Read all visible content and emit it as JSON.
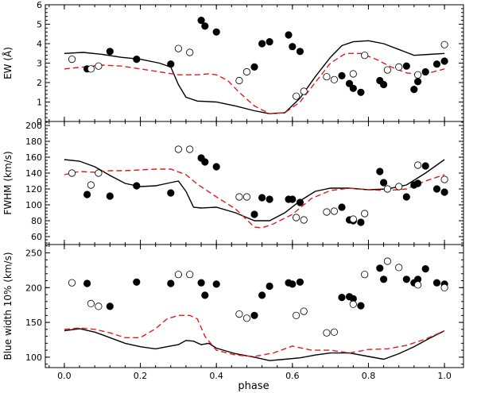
{
  "figure": {
    "xlabel": "phase"
  },
  "chart_data": [
    {
      "type": "line+scatter",
      "panel": "top",
      "ylabel": "EW (Å)",
      "xlim": [
        -0.05,
        1.05
      ],
      "ylim": [
        0,
        6
      ],
      "yticks": [
        0,
        1,
        2,
        3,
        4,
        5,
        6
      ],
      "xticks": [
        0.0,
        0.2,
        0.4,
        0.6,
        0.8,
        1.0
      ],
      "xtick_labels": [
        "0.0",
        "0.2",
        "0.4",
        "0.6",
        "0.8",
        "1.0"
      ],
      "show_xtick_labels": false,
      "series": [
        {
          "name": "model-solid-black",
          "style": "solid-black",
          "x": [
            0.0,
            0.05,
            0.1,
            0.15,
            0.2,
            0.25,
            0.28,
            0.3,
            0.32,
            0.35,
            0.4,
            0.45,
            0.5,
            0.54,
            0.58,
            0.62,
            0.66,
            0.7,
            0.73,
            0.76,
            0.8,
            0.84,
            0.88,
            0.92,
            0.96,
            1.0
          ],
          "y": [
            3.5,
            3.55,
            3.45,
            3.3,
            3.2,
            3.0,
            2.8,
            1.9,
            1.25,
            1.05,
            1.0,
            0.8,
            0.55,
            0.4,
            0.45,
            1.2,
            2.3,
            3.3,
            3.9,
            4.1,
            4.15,
            4.0,
            3.7,
            3.4,
            3.45,
            3.5
          ]
        },
        {
          "name": "model-dashed-red",
          "style": "dashed-red",
          "x": [
            0.0,
            0.05,
            0.1,
            0.15,
            0.2,
            0.25,
            0.3,
            0.35,
            0.38,
            0.4,
            0.43,
            0.46,
            0.5,
            0.54,
            0.58,
            0.62,
            0.66,
            0.7,
            0.74,
            0.78,
            0.82,
            0.86,
            0.9,
            0.94,
            0.98,
            1.0
          ],
          "y": [
            2.7,
            2.8,
            2.9,
            2.85,
            2.7,
            2.55,
            2.4,
            2.4,
            2.45,
            2.4,
            2.1,
            1.5,
            0.8,
            0.4,
            0.45,
            1.0,
            2.0,
            3.0,
            3.5,
            3.5,
            3.2,
            2.8,
            2.5,
            2.4,
            2.6,
            2.7
          ]
        },
        {
          "name": "observed-filled",
          "style": "filled",
          "x": [
            0.06,
            0.12,
            0.19,
            0.28,
            0.36,
            0.37,
            0.4,
            0.5,
            0.52,
            0.54,
            0.59,
            0.6,
            0.62,
            0.73,
            0.75,
            0.76,
            0.78,
            0.83,
            0.84,
            0.9,
            0.92,
            0.93,
            0.95,
            0.98,
            1.0
          ],
          "y": [
            2.7,
            3.6,
            3.2,
            2.95,
            5.2,
            4.9,
            4.6,
            2.8,
            4.0,
            4.1,
            4.45,
            3.85,
            3.6,
            2.35,
            1.95,
            1.7,
            1.5,
            2.1,
            1.9,
            2.85,
            1.65,
            2.05,
            2.55,
            2.95,
            3.1
          ]
        },
        {
          "name": "observed-open",
          "style": "open",
          "x": [
            0.02,
            0.07,
            0.09,
            0.3,
            0.33,
            0.46,
            0.48,
            0.61,
            0.63,
            0.69,
            0.71,
            0.76,
            0.79,
            0.85,
            0.88,
            0.93,
            1.0
          ],
          "y": [
            3.2,
            2.7,
            2.85,
            3.75,
            3.55,
            2.1,
            2.55,
            1.3,
            1.55,
            2.3,
            2.15,
            2.45,
            3.4,
            2.65,
            2.8,
            2.4,
            3.95
          ]
        }
      ]
    },
    {
      "type": "line+scatter",
      "panel": "middle",
      "ylabel": "FWHM (km/s)",
      "xlim": [
        -0.05,
        1.05
      ],
      "ylim": [
        50,
        205
      ],
      "yticks": [
        60,
        80,
        100,
        120,
        140,
        160,
        180,
        200
      ],
      "xticks": [
        0.0,
        0.2,
        0.4,
        0.6,
        0.8,
        1.0
      ],
      "xtick_labels": [
        "0.0",
        "0.2",
        "0.4",
        "0.6",
        "0.8",
        "1.0"
      ],
      "show_xtick_labels": false,
      "series": [
        {
          "name": "model-solid-black",
          "style": "solid-black",
          "x": [
            0.0,
            0.04,
            0.08,
            0.12,
            0.16,
            0.2,
            0.24,
            0.27,
            0.3,
            0.32,
            0.34,
            0.36,
            0.4,
            0.45,
            0.5,
            0.54,
            0.58,
            0.62,
            0.66,
            0.7,
            0.75,
            0.8,
            0.85,
            0.9,
            0.95,
            1.0
          ],
          "y": [
            157,
            155,
            148,
            137,
            127,
            123,
            124,
            127,
            130,
            117,
            97,
            96,
            97,
            90,
            80,
            80,
            90,
            105,
            117,
            121,
            121,
            119,
            120,
            125,
            140,
            157
          ]
        },
        {
          "name": "model-dashed-red",
          "style": "dashed-red",
          "x": [
            0.0,
            0.04,
            0.08,
            0.12,
            0.16,
            0.2,
            0.24,
            0.28,
            0.32,
            0.35,
            0.4,
            0.45,
            0.5,
            0.52,
            0.55,
            0.6,
            0.65,
            0.7,
            0.75,
            0.8,
            0.85,
            0.9,
            0.95,
            1.0
          ],
          "y": [
            138,
            142,
            141,
            143,
            143,
            144,
            145,
            145,
            138,
            126,
            110,
            95,
            72,
            71,
            76,
            88,
            108,
            118,
            121,
            119,
            118,
            120,
            130,
            138
          ]
        },
        {
          "name": "observed-filled",
          "style": "filled",
          "x": [
            0.06,
            0.12,
            0.19,
            0.28,
            0.36,
            0.37,
            0.4,
            0.5,
            0.52,
            0.54,
            0.59,
            0.6,
            0.62,
            0.73,
            0.75,
            0.76,
            0.78,
            0.83,
            0.84,
            0.9,
            0.92,
            0.93,
            0.95,
            0.98,
            1.0
          ],
          "y": [
            113,
            111,
            124,
            115,
            159,
            154,
            148,
            88,
            109,
            107,
            107,
            107,
            103,
            97,
            81,
            80,
            78,
            142,
            128,
            110,
            125,
            127,
            149,
            120,
            116
          ]
        },
        {
          "name": "observed-open",
          "style": "open",
          "x": [
            0.02,
            0.07,
            0.09,
            0.3,
            0.33,
            0.46,
            0.48,
            0.61,
            0.63,
            0.69,
            0.71,
            0.76,
            0.79,
            0.85,
            0.88,
            0.93,
            1.0
          ],
          "y": [
            140,
            125,
            140,
            170,
            170,
            110,
            110,
            84,
            81,
            91,
            92,
            82,
            89,
            120,
            123,
            150,
            132
          ]
        }
      ]
    },
    {
      "type": "line+scatter",
      "panel": "bottom",
      "ylabel": "Blue width 10% (km/s)",
      "xlim": [
        -0.05,
        1.05
      ],
      "ylim": [
        85,
        262
      ],
      "yticks": [
        100,
        150,
        200,
        250
      ],
      "xticks": [
        0.0,
        0.2,
        0.4,
        0.6,
        0.8,
        1.0
      ],
      "xtick_labels": [
        "0.0",
        "0.2",
        "0.4",
        "0.6",
        "0.8",
        "1.0"
      ],
      "show_xtick_labels": true,
      "series": [
        {
          "name": "model-solid-black",
          "style": "solid-black",
          "x": [
            0.0,
            0.04,
            0.08,
            0.12,
            0.16,
            0.2,
            0.24,
            0.27,
            0.3,
            0.32,
            0.34,
            0.36,
            0.38,
            0.4,
            0.45,
            0.5,
            0.54,
            0.58,
            0.62,
            0.66,
            0.7,
            0.75,
            0.8,
            0.84,
            0.88,
            0.92,
            0.96,
            1.0
          ],
          "y": [
            138,
            141,
            136,
            128,
            120,
            115,
            112,
            115,
            118,
            124,
            123,
            118,
            120,
            113,
            105,
            100,
            95,
            97,
            99,
            103,
            106,
            106,
            101,
            97,
            105,
            115,
            127,
            138
          ]
        },
        {
          "name": "model-dashed-red",
          "style": "dashed-red",
          "x": [
            0.0,
            0.04,
            0.08,
            0.12,
            0.16,
            0.2,
            0.24,
            0.27,
            0.3,
            0.33,
            0.35,
            0.37,
            0.4,
            0.45,
            0.5,
            0.55,
            0.6,
            0.65,
            0.7,
            0.75,
            0.8,
            0.85,
            0.9,
            0.95,
            1.0
          ],
          "y": [
            140,
            142,
            140,
            135,
            128,
            128,
            141,
            155,
            160,
            160,
            155,
            130,
            110,
            103,
            101,
            106,
            116,
            110,
            110,
            106,
            111,
            112,
            117,
            126,
            138
          ]
        },
        {
          "name": "observed-filled",
          "style": "filled",
          "x": [
            0.06,
            0.12,
            0.19,
            0.28,
            0.36,
            0.37,
            0.4,
            0.5,
            0.52,
            0.54,
            0.59,
            0.6,
            0.62,
            0.73,
            0.75,
            0.76,
            0.78,
            0.83,
            0.84,
            0.9,
            0.92,
            0.93,
            0.95,
            0.98,
            1.0
          ],
          "y": [
            206,
            173,
            208,
            206,
            207,
            189,
            205,
            160,
            189,
            202,
            207,
            205,
            208,
            186,
            187,
            184,
            174,
            228,
            212,
            212,
            207,
            212,
            227,
            207,
            205
          ]
        },
        {
          "name": "observed-open",
          "style": "open",
          "x": [
            0.02,
            0.07,
            0.09,
            0.3,
            0.33,
            0.46,
            0.48,
            0.61,
            0.63,
            0.69,
            0.71,
            0.76,
            0.79,
            0.85,
            0.88,
            0.93,
            1.0
          ],
          "y": [
            207,
            177,
            173,
            219,
            219,
            162,
            156,
            160,
            166,
            135,
            136,
            176,
            219,
            238,
            229,
            204,
            200
          ]
        }
      ]
    }
  ]
}
